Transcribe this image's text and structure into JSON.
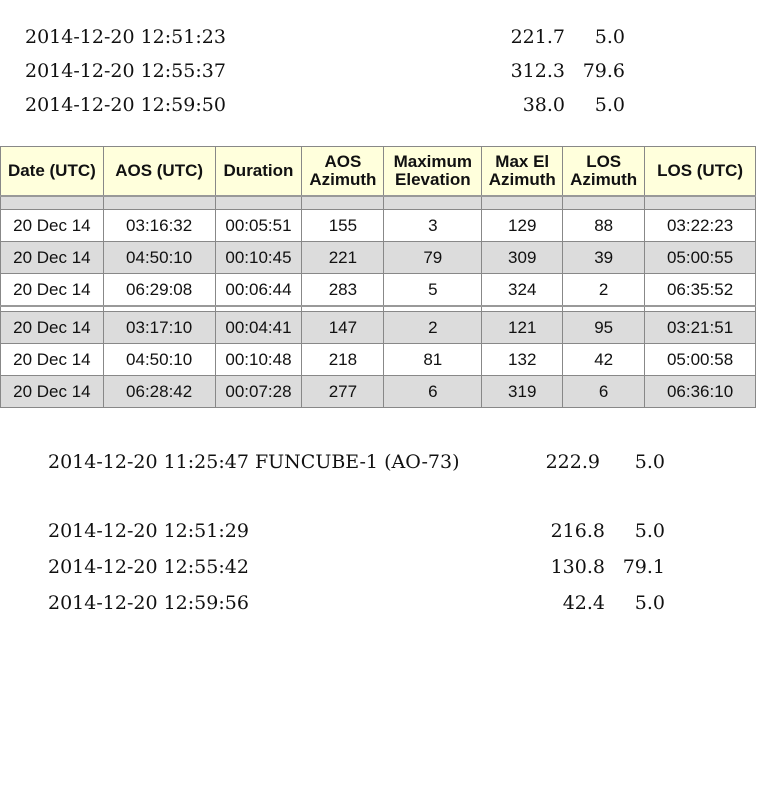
{
  "top_lines": [
    {
      "time": "2014-12-20 12:51:23",
      "az": "221.7",
      "el": "5.0"
    },
    {
      "time": "2014-12-20 12:55:37",
      "az": "312.3",
      "el": "79.6"
    },
    {
      "time": "2014-12-20 12:59:50",
      "az": "38.0",
      "el": "5.0"
    }
  ],
  "table": {
    "headers": [
      "Date (UTC)",
      "AOS (UTC)",
      "Duration",
      "AOS Azimuth",
      "Maximum Elevation",
      "Max El Azimuth",
      "LOS Azimuth",
      "LOS (UTC)"
    ],
    "group1": [
      [
        "20 Dec 14",
        "03:16:32",
        "00:05:51",
        "155",
        "3",
        "129",
        "88",
        "03:22:23"
      ],
      [
        "20 Dec 14",
        "04:50:10",
        "00:10:45",
        "221",
        "79",
        "309",
        "39",
        "05:00:55"
      ],
      [
        "20 Dec 14",
        "06:29:08",
        "00:06:44",
        "283",
        "5",
        "324",
        "2",
        "06:35:52"
      ]
    ],
    "group2": [
      [
        "20 Dec 14",
        "03:17:10",
        "00:04:41",
        "147",
        "2",
        "121",
        "95",
        "03:21:51"
      ],
      [
        "20 Dec 14",
        "04:50:10",
        "00:10:48",
        "218",
        "81",
        "132",
        "42",
        "05:00:58"
      ],
      [
        "20 Dec 14",
        "06:28:42",
        "00:07:28",
        "277",
        "6",
        "319",
        "6",
        "06:36:10"
      ]
    ]
  },
  "bottom_header": {
    "time": "2014-12-20 11:25:47 FUNCUBE-1 (AO-73)",
    "az": "222.9",
    "el": "5.0"
  },
  "bottom_lines": [
    {
      "time": "2014-12-20 12:51:29",
      "az": "216.8",
      "el": "5.0"
    },
    {
      "time": "2014-12-20 12:55:42",
      "az": "130.8",
      "el": "79.1"
    },
    {
      "time": "2014-12-20 12:59:56",
      "az": "42.4",
      "el": "5.0"
    }
  ]
}
